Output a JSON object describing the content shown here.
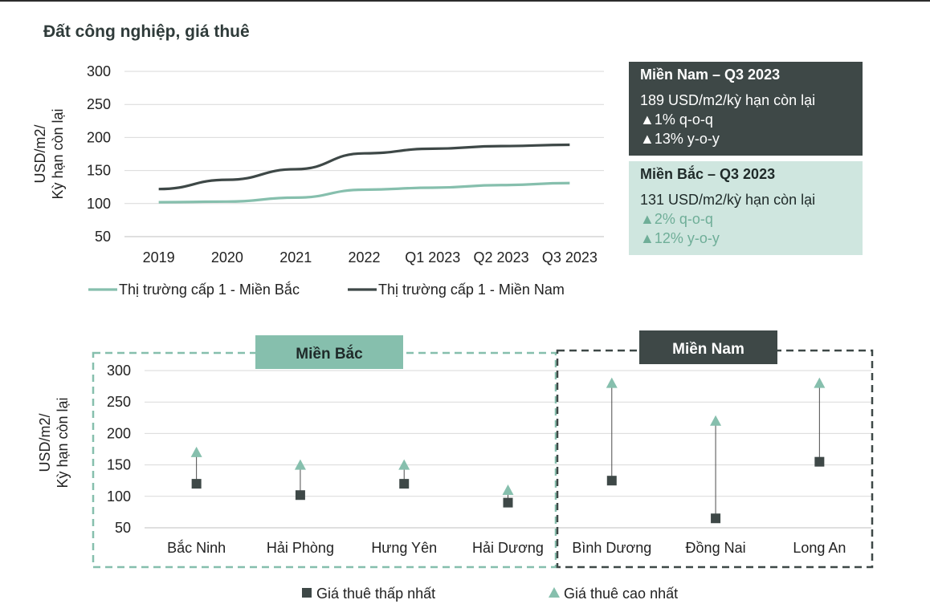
{
  "title": "Đất công nghiệp, giá thuê",
  "summary": {
    "south": {
      "heading": "Miền Nam – Q3 2023",
      "price": "189 USD/m2/kỳ hạn còn lại",
      "qoq": "▲1%   q-o-q",
      "yoy": "▲13% y-o-y"
    },
    "north": {
      "heading": "Miền Bắc – Q3 2023",
      "price": "131 USD/m2/kỳ hạn còn lại",
      "qoq": "▲2%  q-o-q",
      "yoy": "▲12% y-o-y"
    }
  },
  "colors": {
    "north": "#86bfad",
    "south": "#3e4847",
    "grid": "#d9d9d9"
  },
  "chart_data": [
    {
      "type": "line",
      "title": "",
      "ylabel": [
        "USD/m2/",
        "Kỳ hạn còn lại"
      ],
      "xlabel": "",
      "ylim": [
        50,
        300
      ],
      "yticks": [
        300,
        250,
        200,
        150,
        100,
        50
      ],
      "categories": [
        "2019",
        "2020",
        "2021",
        "2022",
        "Q1 2023",
        "Q2 2023",
        "Q3 2023"
      ],
      "series": [
        {
          "name": "Thị trường cấp 1 - Miền Bắc",
          "values": [
            102,
            103,
            109,
            121,
            124,
            128,
            131
          ]
        },
        {
          "name": "Thị trường cấp 1 - Miền Nam",
          "values": [
            122,
            136,
            152,
            176,
            183,
            187,
            189
          ]
        }
      ],
      "grid": true,
      "legend": "bottom"
    },
    {
      "type": "scatter",
      "title": "",
      "ylabel": [
        "USD/m2/",
        "Kỳ hạn còn lại"
      ],
      "xlabel": "",
      "ylim": [
        50,
        300
      ],
      "yticks": [
        300,
        250,
        200,
        150,
        100,
        50
      ],
      "groups": [
        "Miền Bắc",
        "Miền Nam"
      ],
      "categories": [
        "Bắc Ninh",
        "Hải Phòng",
        "Hưng Yên",
        "Hải Dương",
        "Bình Dương",
        "Đồng Nai",
        "Long An"
      ],
      "series": [
        {
          "name": "Giá thuê thấp nhất",
          "values": [
            120,
            102,
            120,
            90,
            125,
            65,
            155
          ]
        },
        {
          "name": "Giá thuê cao nhất",
          "values": [
            170,
            150,
            150,
            110,
            280,
            220,
            280
          ]
        }
      ],
      "grid": true,
      "legend": "bottom"
    }
  ]
}
